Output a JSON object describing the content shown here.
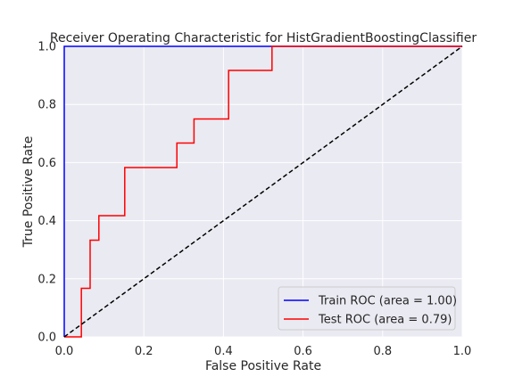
{
  "chart_data": {
    "type": "line",
    "title": "Receiver Operating Characteristic for HistGradientBoostingClassifier",
    "xlabel": "False Positive Rate",
    "ylabel": "True Positive Rate",
    "xlim": [
      0.0,
      1.0
    ],
    "ylim": [
      0.0,
      1.0
    ],
    "xticks": [
      "0.0",
      "0.2",
      "0.4",
      "0.6",
      "0.8",
      "1.0"
    ],
    "yticks": [
      "0.0",
      "0.2",
      "0.4",
      "0.6",
      "0.8",
      "1.0"
    ],
    "grid": true,
    "legend_position": "lower right",
    "series": [
      {
        "name": "Train ROC (area = 1.00)",
        "color": "#0000ff",
        "style": "solid",
        "points": [
          [
            0.0,
            0.0
          ],
          [
            0.0,
            1.0
          ],
          [
            1.0,
            1.0
          ]
        ]
      },
      {
        "name": "Test ROC (area = 0.79)",
        "color": "#ff0000",
        "style": "solid",
        "points": [
          [
            0.0,
            0.0
          ],
          [
            0.043,
            0.0
          ],
          [
            0.043,
            0.167
          ],
          [
            0.065,
            0.167
          ],
          [
            0.065,
            0.333
          ],
          [
            0.087,
            0.333
          ],
          [
            0.087,
            0.417
          ],
          [
            0.152,
            0.417
          ],
          [
            0.152,
            0.583
          ],
          [
            0.283,
            0.583
          ],
          [
            0.283,
            0.667
          ],
          [
            0.326,
            0.667
          ],
          [
            0.326,
            0.75
          ],
          [
            0.413,
            0.75
          ],
          [
            0.413,
            0.917
          ],
          [
            0.522,
            0.917
          ],
          [
            0.522,
            1.0
          ],
          [
            1.0,
            1.0
          ]
        ]
      },
      {
        "color": "#000000",
        "style": "dashed",
        "points": [
          [
            0.0,
            0.0
          ],
          [
            1.0,
            1.0
          ]
        ]
      }
    ]
  }
}
